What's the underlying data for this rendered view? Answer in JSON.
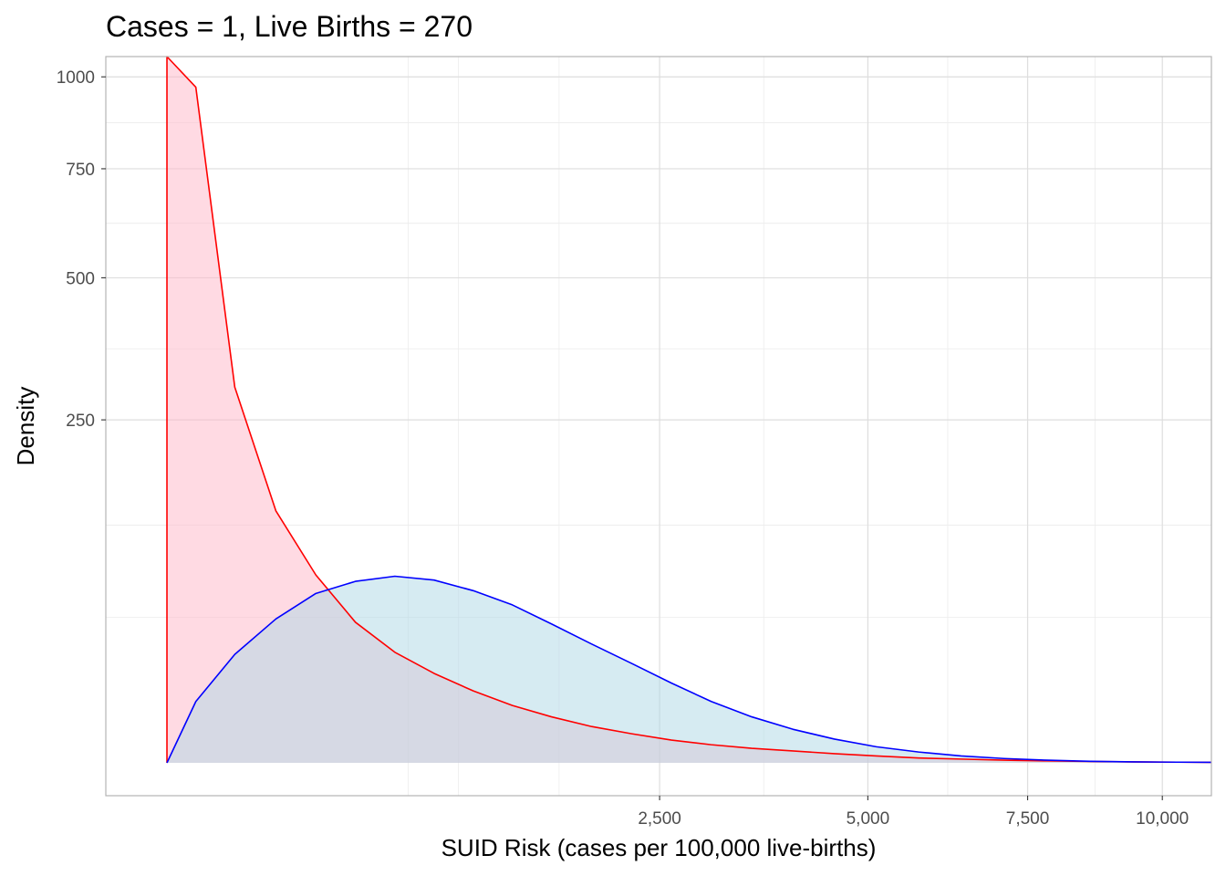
{
  "chart_data": {
    "type": "area",
    "title": "Cases = 1, Live Births = 270",
    "xlabel": "SUID Risk (cases per 100,000 live-births)",
    "ylabel": "Density",
    "x_scale": "sqrt",
    "y_scale": "sqrt",
    "xlim": [
      0,
      11000
    ],
    "ylim": [
      0,
      1060
    ],
    "x_ticks": [
      2500,
      5000,
      7500,
      10000
    ],
    "x_tick_labels": [
      "2,500",
      "5,000",
      "7,500",
      "10,000"
    ],
    "y_ticks": [
      250,
      500,
      750,
      1000
    ],
    "y_tick_labels": [
      "250",
      "500",
      "750",
      "1000"
    ],
    "grid": true,
    "legend": "none",
    "series": [
      {
        "line_color": "#ff0000",
        "fill_color": "#ffb6c8",
        "points": [
          [
            1,
            0
          ],
          [
            1,
            1060
          ],
          [
            15,
            970
          ],
          [
            60,
            300
          ],
          [
            140,
            135
          ],
          [
            250,
            75
          ],
          [
            390,
            42
          ],
          [
            560,
            26
          ],
          [
            760,
            17
          ],
          [
            990,
            11
          ],
          [
            1250,
            7
          ],
          [
            1540,
            4.5
          ],
          [
            1870,
            2.8
          ],
          [
            2230,
            1.8
          ],
          [
            2620,
            1.1
          ],
          [
            3040,
            0.7
          ],
          [
            3500,
            0.45
          ],
          [
            4000,
            0.3
          ],
          [
            4540,
            0.18
          ],
          [
            5120,
            0.1
          ],
          [
            5740,
            0.05
          ],
          [
            6400,
            0.03
          ],
          [
            7100,
            0.015
          ],
          [
            7840,
            0.008
          ],
          [
            8620,
            0.004
          ],
          [
            9440,
            0.002
          ],
          [
            10300,
            0.001
          ],
          [
            11000,
            0.0005
          ]
        ]
      },
      {
        "line_color": "#0000ff",
        "fill_color": "#add8e6",
        "points": [
          [
            1,
            0
          ],
          [
            15,
            8
          ],
          [
            60,
            25
          ],
          [
            140,
            44
          ],
          [
            250,
            61
          ],
          [
            390,
            70
          ],
          [
            560,
            74
          ],
          [
            760,
            71
          ],
          [
            990,
            63
          ],
          [
            1250,
            53
          ],
          [
            1540,
            41
          ],
          [
            1870,
            30
          ],
          [
            2230,
            21
          ],
          [
            2620,
            13.5
          ],
          [
            3040,
            8
          ],
          [
            3500,
            4.5
          ],
          [
            4000,
            2.4
          ],
          [
            4540,
            1.2
          ],
          [
            5120,
            0.55
          ],
          [
            5740,
            0.25
          ],
          [
            6400,
            0.1
          ],
          [
            7100,
            0.04
          ],
          [
            7840,
            0.015
          ],
          [
            8620,
            0.005
          ],
          [
            9440,
            0.002
          ],
          [
            10300,
            0.001
          ],
          [
            11000,
            0.0005
          ]
        ]
      }
    ]
  }
}
